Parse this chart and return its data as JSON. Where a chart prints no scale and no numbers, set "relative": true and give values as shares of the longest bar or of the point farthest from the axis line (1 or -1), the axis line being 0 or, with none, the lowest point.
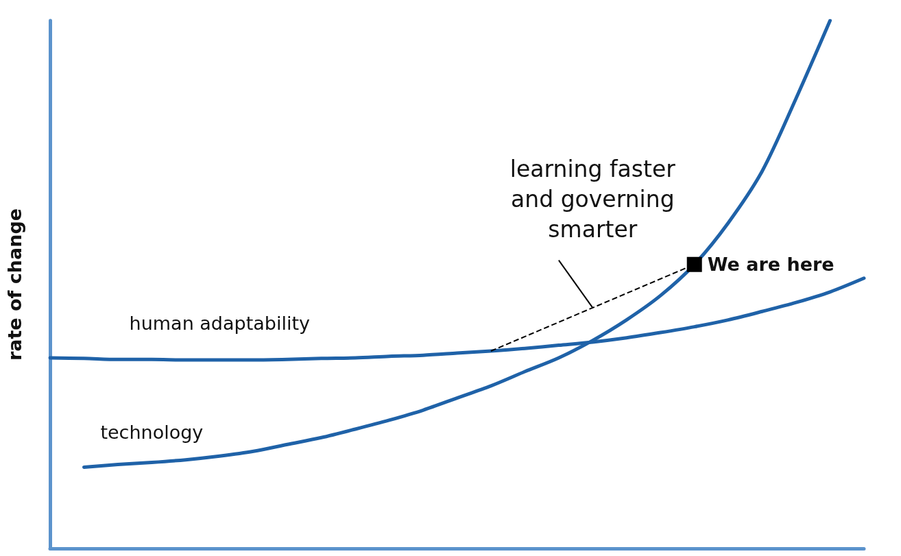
{
  "chart_data": {
    "type": "line",
    "relative": true,
    "ylabel": "rate of change",
    "categories": [
      null,
      null,
      null,
      null,
      null,
      null,
      null,
      null,
      null,
      null,
      null,
      null,
      null,
      null,
      null,
      null,
      null,
      null,
      null,
      null,
      null,
      null,
      null,
      null,
      null
    ],
    "series": [
      {
        "name": "human adaptability",
        "color": "#1f62a8",
        "values": [
          0.361,
          0.36,
          0.358,
          0.358,
          0.357,
          0.357,
          0.357,
          0.358,
          0.36,
          0.361,
          0.364,
          0.366,
          0.37,
          0.374,
          0.379,
          0.385,
          0.391,
          0.399,
          0.409,
          0.42,
          0.433,
          0.449,
          0.466,
          0.486,
          0.512
        ]
      },
      {
        "name": "technology",
        "color": "#1f62a8",
        "values": [
          null,
          0.154,
          0.159,
          0.163,
          0.168,
          0.175,
          0.184,
          0.197,
          0.21,
          0.226,
          0.243,
          0.262,
          0.285,
          0.308,
          0.335,
          0.361,
          0.394,
          0.433,
          0.479,
          0.538,
          0.617,
          0.715,
          0.853,
          1.0,
          null
        ]
      }
    ],
    "annotations": [
      "learning faster\nand governing\nsmarter",
      "We are here"
    ],
    "marker": "none",
    "line_style": "solid",
    "legend": false,
    "grid": false
  }
}
